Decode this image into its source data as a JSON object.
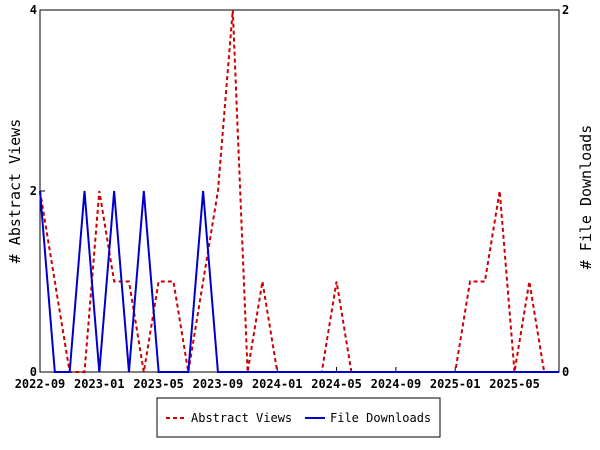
{
  "chart_data": {
    "type": "line",
    "title": "",
    "xlabel": "",
    "ylabel_left": "# Abstract Views",
    "ylabel_right": "# File Downloads",
    "x_tick_labels": [
      "2022-09",
      "2023-01",
      "2023-05",
      "2023-09",
      "2024-01",
      "2024-05",
      "2024-09",
      "2025-01",
      "2025-05"
    ],
    "y_left_ticks": [
      "0",
      "2",
      "4"
    ],
    "y_right_ticks": [
      "0",
      "2"
    ],
    "ylim_left": [
      0,
      4
    ],
    "ylim_right": [
      0,
      2
    ],
    "grid": false,
    "legend_placement": "bottom-center",
    "x": [
      "2022-09",
      "2022-10",
      "2022-11",
      "2022-12",
      "2023-01",
      "2023-02",
      "2023-03",
      "2023-04",
      "2023-05",
      "2023-06",
      "2023-07",
      "2023-08",
      "2023-09",
      "2023-10",
      "2023-11",
      "2023-12",
      "2024-01",
      "2024-02",
      "2024-03",
      "2024-04",
      "2024-05",
      "2024-06",
      "2024-07",
      "2024-08",
      "2024-09",
      "2024-10",
      "2024-11",
      "2024-12",
      "2025-01",
      "2025-02",
      "2025-03",
      "2025-04",
      "2025-05",
      "2025-06",
      "2025-07",
      "2025-08"
    ],
    "series": [
      {
        "name": "Abstract Views",
        "axis": "left",
        "color": "#cc0000",
        "dash": true,
        "values": [
          2,
          1,
          0,
          0,
          2,
          1,
          1,
          0,
          1,
          1,
          0,
          1,
          2,
          4,
          0,
          1,
          0,
          0,
          0,
          0,
          1,
          0,
          0,
          0,
          0,
          0,
          0,
          0,
          0,
          1,
          1,
          2,
          0,
          1,
          0,
          0
        ]
      },
      {
        "name": "File Downloads",
        "axis": "right",
        "color": "#0000cc",
        "dash": false,
        "values": [
          1,
          0,
          0,
          1,
          0,
          1,
          0,
          1,
          0,
          0,
          0,
          1,
          0,
          0,
          0,
          0,
          0,
          0,
          0,
          0,
          0,
          0,
          0,
          0,
          0,
          0,
          0,
          0,
          0,
          0,
          0,
          0,
          0,
          0,
          0,
          0
        ]
      }
    ]
  }
}
